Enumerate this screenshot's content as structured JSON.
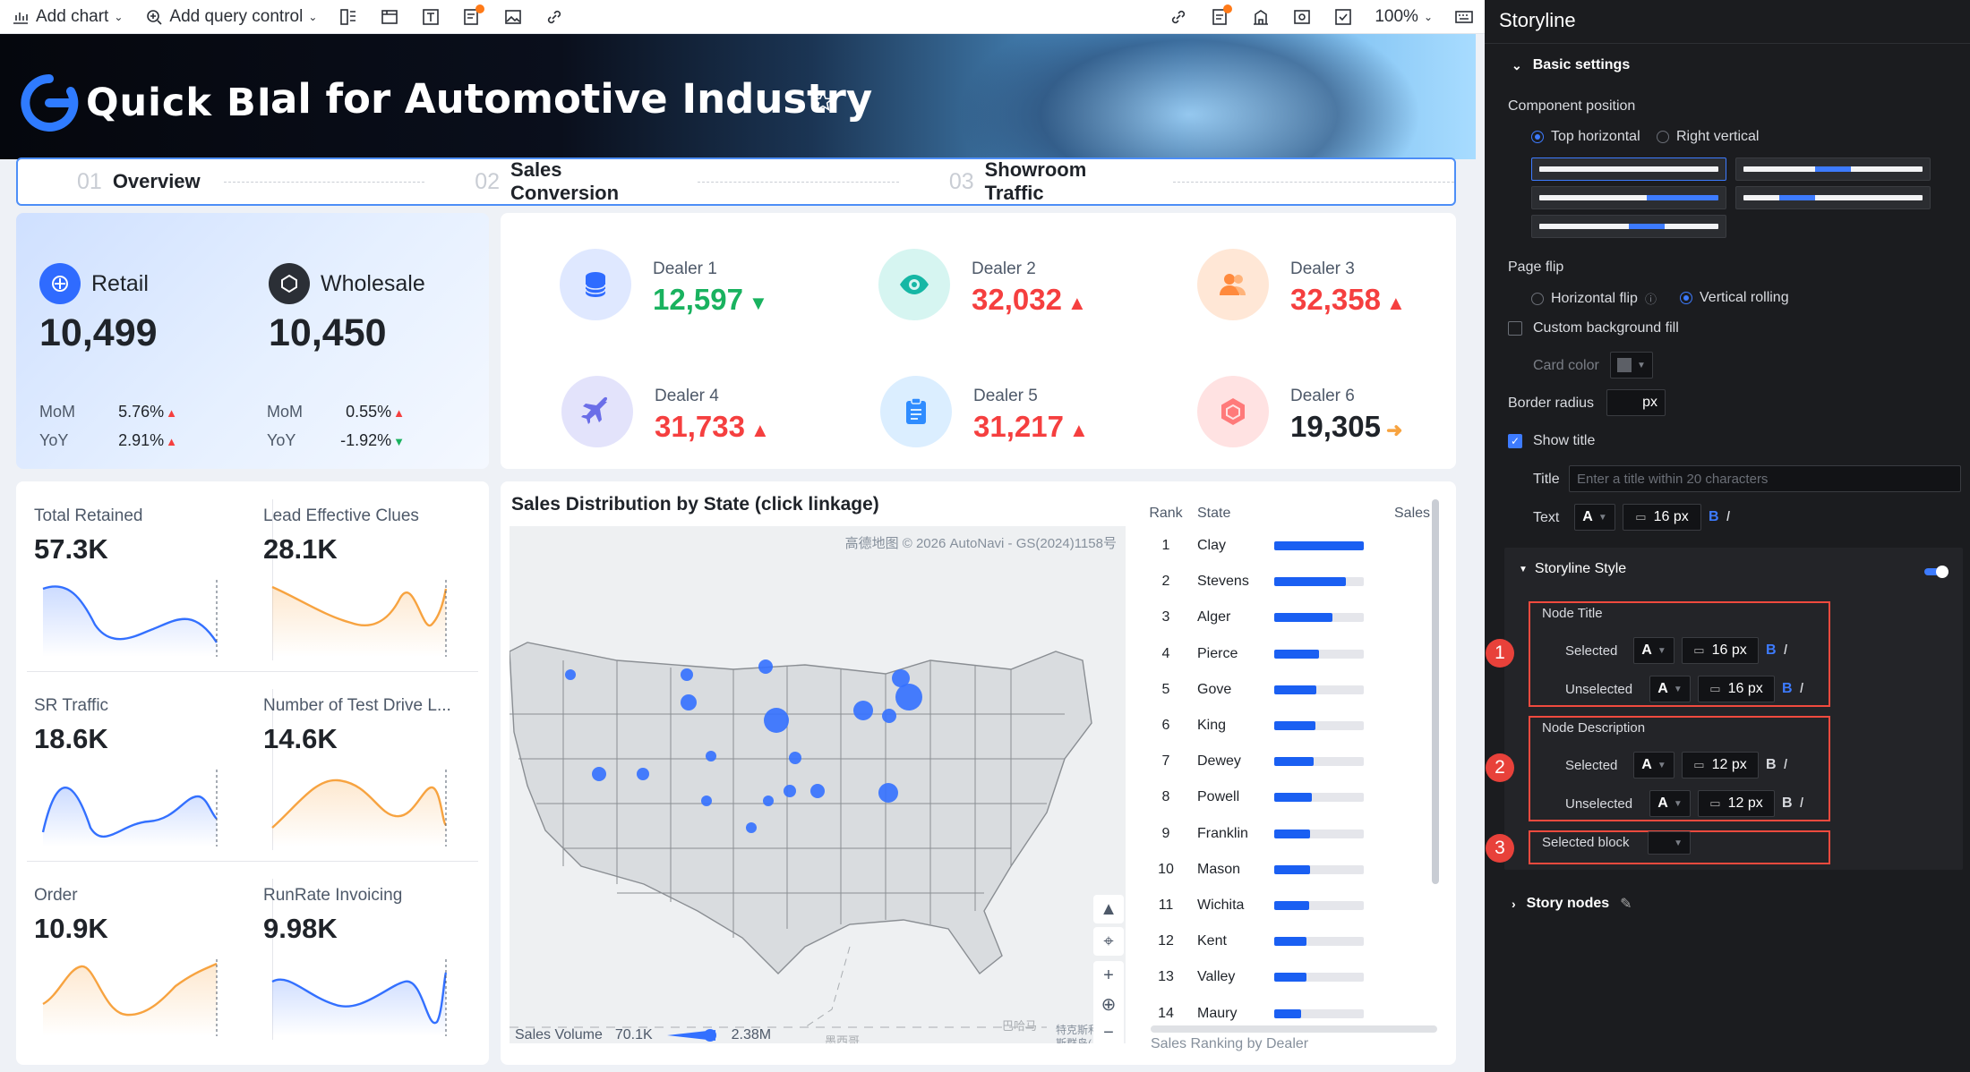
{
  "toolbar": {
    "add_chart": "Add chart",
    "add_query_control": "Add query control",
    "zoom": "100%"
  },
  "banner": {
    "logo_text": "Quick BI",
    "title": "al for Automotive Industry"
  },
  "tabs": [
    {
      "num": "01",
      "label": "Overview"
    },
    {
      "num": "02",
      "label": "Sales Conversion"
    },
    {
      "num": "03",
      "label": "Showroom Traffic"
    }
  ],
  "retail": {
    "label": "Retail",
    "value": "10,499",
    "mom_label": "MoM",
    "mom": "5.76%",
    "yoy_label": "YoY",
    "yoy": "2.91%"
  },
  "wholesale": {
    "label": "Wholesale",
    "value": "10,450",
    "mom_label": "MoM",
    "mom": "0.55%",
    "yoy_label": "YoY",
    "yoy": "-1.92%"
  },
  "dealers": [
    {
      "name": "Dealer 1",
      "value": "12,597",
      "trend": "down",
      "color": "#19b25f"
    },
    {
      "name": "Dealer 2",
      "value": "32,032",
      "trend": "up",
      "color": "#f53f3f"
    },
    {
      "name": "Dealer 3",
      "value": "32,358",
      "trend": "up",
      "color": "#f53f3f"
    },
    {
      "name": "Dealer 4",
      "value": "31,733",
      "trend": "up",
      "color": "#f53f3f"
    },
    {
      "name": "Dealer 5",
      "value": "31,217",
      "trend": "up",
      "color": "#f53f3f"
    },
    {
      "name": "Dealer 6",
      "value": "19,305",
      "trend": "flat",
      "color": "#1f2329"
    }
  ],
  "kpis": [
    {
      "label": "Total Retained",
      "value": "57.3K",
      "color": "#3370ff"
    },
    {
      "label": "Lead Effective Clues",
      "value": "28.1K",
      "color": "#f7a340"
    },
    {
      "label": "SR Traffic",
      "value": "18.6K",
      "color": "#3370ff"
    },
    {
      "label": "Number of Test Drive L...",
      "value": "14.6K",
      "color": "#f7a340"
    },
    {
      "label": "Order",
      "value": "10.9K",
      "color": "#f7a340"
    },
    {
      "label": "RunRate Invoicing",
      "value": "9.98K",
      "color": "#3370ff"
    }
  ],
  "map": {
    "title": "Sales Distribution by State (click linkage)",
    "copyright": "高德地图 © 2026 AutoNavi - GS(2024)1158号",
    "legend_label": "Sales Volume",
    "legend_min": "70.1K",
    "legend_max": "2.38M",
    "label_mexico": "墨西哥",
    "label_bahamas": "巴哈马",
    "label_caribbean": "特克斯和凯\n斯群岛(..."
  },
  "ranking": {
    "col_rank": "Rank",
    "col_state": "State",
    "col_sales": "Sales",
    "footer": "Sales Ranking by Dealer",
    "rows": [
      {
        "rank": "1",
        "state": "Clay",
        "share": 1.0
      },
      {
        "rank": "2",
        "state": "Stevens",
        "share": 0.8
      },
      {
        "rank": "3",
        "state": "Alger",
        "share": 0.65
      },
      {
        "rank": "4",
        "state": "Pierce",
        "share": 0.5
      },
      {
        "rank": "5",
        "state": "Gove",
        "share": 0.47
      },
      {
        "rank": "6",
        "state": "King",
        "share": 0.46
      },
      {
        "rank": "7",
        "state": "Dewey",
        "share": 0.44
      },
      {
        "rank": "8",
        "state": "Powell",
        "share": 0.42
      },
      {
        "rank": "9",
        "state": "Franklin",
        "share": 0.4
      },
      {
        "rank": "10",
        "state": "Mason",
        "share": 0.4
      },
      {
        "rank": "11",
        "state": "Wichita",
        "share": 0.39
      },
      {
        "rank": "12",
        "state": "Kent",
        "share": 0.36
      },
      {
        "rank": "13",
        "state": "Valley",
        "share": 0.36
      },
      {
        "rank": "14",
        "state": "Maury",
        "share": 0.3
      }
    ]
  },
  "panel": {
    "title": "Storyline",
    "basic_settings": "Basic settings",
    "component_position": "Component position",
    "top_horizontal": "Top horizontal",
    "right_vertical": "Right vertical",
    "page_flip": "Page flip",
    "horizontal_flip": "Horizontal flip",
    "vertical_rolling": "Vertical rolling",
    "custom_bg_fill": "Custom background fill",
    "card_color": "Card color",
    "border_radius": "Border radius",
    "border_radius_unit": "px",
    "show_title": "Show title",
    "title_label": "Title",
    "title_placeholder": "Enter a title within 20 characters",
    "text_label": "Text",
    "font_a": "A",
    "text_size": "16 px",
    "bold": "B",
    "italic": "I",
    "storyline_style": "Storyline Style",
    "node_title": "Node Title",
    "selected": "Selected",
    "unselected": "Unselected",
    "node_title_selected_size": "16 px",
    "node_title_unselected_size": "16 px",
    "node_description": "Node Description",
    "node_desc_selected_size": "12 px",
    "node_desc_unselected_size": "12 px",
    "selected_block": "Selected block",
    "story_nodes": "Story nodes",
    "badge_1": "1",
    "badge_2": "2",
    "badge_3": "3"
  }
}
